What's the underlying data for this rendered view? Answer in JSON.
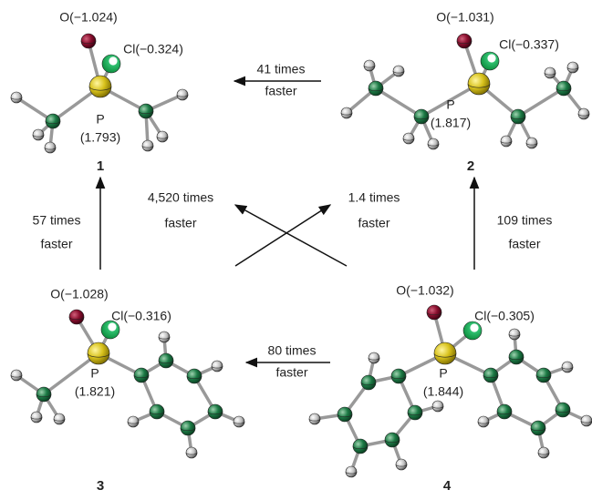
{
  "molecules": [
    {
      "number": "1",
      "oxygen": "O(−1.024)",
      "chlorine": "Cl(−0.324)",
      "phosphorus": "P",
      "bond": "(1.793)"
    },
    {
      "number": "2",
      "oxygen": "O(−1.031)",
      "chlorine": "Cl(−0.337)",
      "phosphorus": "P",
      "bond": "(1.817)"
    },
    {
      "number": "3",
      "oxygen": "O(−1.028)",
      "chlorine": "Cl(−0.316)",
      "phosphorus": "P",
      "bond": "(1.821)"
    },
    {
      "number": "4",
      "oxygen": "O(−1.032)",
      "chlorine": "Cl(−0.305)",
      "phosphorus": "P",
      "bond": "(1.844)"
    }
  ],
  "arrows": [
    {
      "lines": [
        "41 times",
        "faster"
      ]
    },
    {
      "lines": [
        "57 times",
        "faster"
      ]
    },
    {
      "lines": [
        "4,520 times",
        "faster"
      ]
    },
    {
      "lines": [
        "1.4 times",
        "faster"
      ]
    },
    {
      "lines": [
        "109 times",
        "faster"
      ]
    },
    {
      "lines": [
        "80 times",
        "faster"
      ]
    }
  ]
}
